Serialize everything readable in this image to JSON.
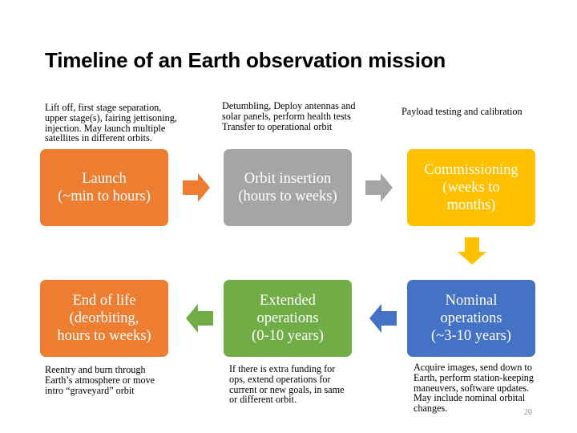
{
  "title": "Timeline of an Earth observation mission",
  "stages": [
    {
      "id": "launch",
      "label": "Launch\n(~min to hours)",
      "color": "#ED7D31",
      "note": "Lift off, first stage separation,\nupper stage(s), fairing jettisoning,\ninjection. May launch multiple\nsatellites in different orbits."
    },
    {
      "id": "orbit-insertion",
      "label": "Orbit insertion\n(hours to weeks)",
      "color": "#A5A5A5",
      "note": "Detumbling, Deploy antennas and\nsolar panels, perform health tests\nTransfer to operational orbit"
    },
    {
      "id": "commissioning",
      "label": "Commissioning\n(weeks to\nmonths)",
      "color": "#FFC000",
      "note": "Payload testing and calibration"
    },
    {
      "id": "nominal-operations",
      "label": "Nominal\noperations\n(~3-10 years)",
      "color": "#4472C4",
      "note": "Acquire images, send down to\nEarth, perform station-keeping\nmaneuvers, software updates.\nMay include nominal orbital\nchanges."
    },
    {
      "id": "extended-operations",
      "label": "Extended\noperations\n(0-10 years)",
      "color": "#70AD47",
      "note": "If there is extra funding for\nops, extend operations for\ncurrent or new goals, in same\nor different orbit."
    },
    {
      "id": "end-of-life",
      "label": "End of life\n(deorbiting,\nhours to weeks)",
      "color": "#ED7D31",
      "note": "Reentry and burn through\nEarth’s atmosphere or move\nintro “graveyard” orbit"
    }
  ],
  "arrows": [
    {
      "from": "launch",
      "to": "orbit-insertion",
      "direction": "right",
      "color": "#ED7D31"
    },
    {
      "from": "orbit-insertion",
      "to": "commissioning",
      "direction": "right",
      "color": "#A5A5A5"
    },
    {
      "from": "commissioning",
      "to": "nominal-operations",
      "direction": "down",
      "color": "#FFC000"
    },
    {
      "from": "nominal-operations",
      "to": "extended-operations",
      "direction": "left",
      "color": "#4472C4"
    },
    {
      "from": "extended-operations",
      "to": "end-of-life",
      "direction": "left",
      "color": "#70AD47"
    }
  ],
  "page_number": "20"
}
